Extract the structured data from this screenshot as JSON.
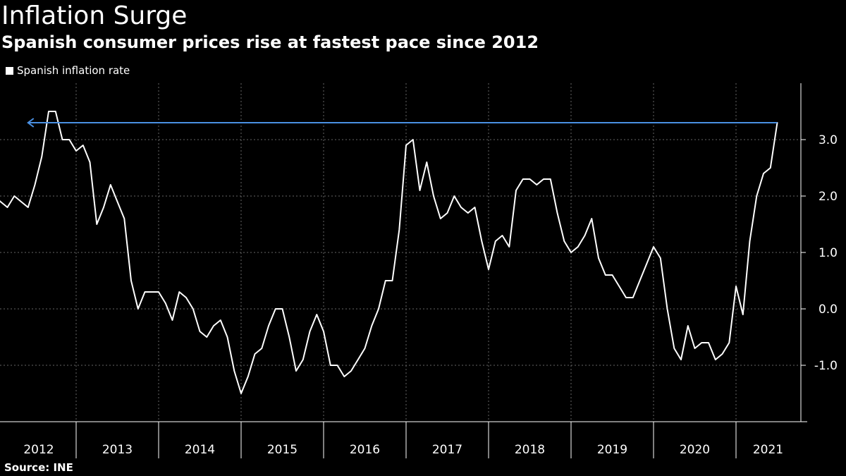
{
  "title": "Inflation Surge",
  "subtitle": "Spanish consumer prices rise at fastest pace since 2012",
  "source": "Source: INE",
  "colors": {
    "background": "#000000",
    "series": "#ffffff",
    "arrow": "#4a90e2",
    "grid": "#666666"
  },
  "chart_data": {
    "type": "line",
    "title": "Inflation Surge",
    "subtitle": "Spanish consumer prices rise at fastest pace since 2012",
    "legend": "top-left",
    "grid": true,
    "x_tick_labels": [
      "2012",
      "2013",
      "2014",
      "2015",
      "2016",
      "2017",
      "2018",
      "2019",
      "2020",
      "2021"
    ],
    "y_tick_labels": [
      "3.0",
      "2.0",
      "1.0",
      "0.0",
      "-1.0"
    ],
    "y_ticks": [
      3.0,
      2.0,
      1.0,
      0.0,
      -1.0
    ],
    "ylim": [
      -2.0,
      4.0
    ],
    "xlim": [
      "2012-01",
      "2021-08"
    ],
    "annotation": {
      "type": "arrow",
      "from": "2021-07",
      "to": "2012-06",
      "value": 3.3
    },
    "series": [
      {
        "name": "Spanish inflation rate",
        "x": [
          "2012-01",
          "2012-02",
          "2012-03",
          "2012-04",
          "2012-05",
          "2012-06",
          "2012-07",
          "2012-08",
          "2012-09",
          "2012-10",
          "2012-11",
          "2012-12",
          "2013-01",
          "2013-02",
          "2013-03",
          "2013-04",
          "2013-05",
          "2013-06",
          "2013-07",
          "2013-08",
          "2013-09",
          "2013-10",
          "2013-11",
          "2013-12",
          "2014-01",
          "2014-02",
          "2014-03",
          "2014-04",
          "2014-05",
          "2014-06",
          "2014-07",
          "2014-08",
          "2014-09",
          "2014-10",
          "2014-11",
          "2014-12",
          "2015-01",
          "2015-02",
          "2015-03",
          "2015-04",
          "2015-05",
          "2015-06",
          "2015-07",
          "2015-08",
          "2015-09",
          "2015-10",
          "2015-11",
          "2015-12",
          "2016-01",
          "2016-02",
          "2016-03",
          "2016-04",
          "2016-05",
          "2016-06",
          "2016-07",
          "2016-08",
          "2016-09",
          "2016-10",
          "2016-11",
          "2016-12",
          "2017-01",
          "2017-02",
          "2017-03",
          "2017-04",
          "2017-05",
          "2017-06",
          "2017-07",
          "2017-08",
          "2017-09",
          "2017-10",
          "2017-11",
          "2017-12",
          "2018-01",
          "2018-02",
          "2018-03",
          "2018-04",
          "2018-05",
          "2018-06",
          "2018-07",
          "2018-08",
          "2018-09",
          "2018-10",
          "2018-11",
          "2018-12",
          "2019-01",
          "2019-02",
          "2019-03",
          "2019-04",
          "2019-05",
          "2019-06",
          "2019-07",
          "2019-08",
          "2019-09",
          "2019-10",
          "2019-11",
          "2019-12",
          "2020-01",
          "2020-02",
          "2020-03",
          "2020-04",
          "2020-05",
          "2020-06",
          "2020-07",
          "2020-08",
          "2020-09",
          "2020-10",
          "2020-11",
          "2020-12",
          "2021-01",
          "2021-02",
          "2021-03",
          "2021-04",
          "2021-05",
          "2021-06",
          "2021-07"
        ],
        "values": [
          2.0,
          1.9,
          1.8,
          2.0,
          1.9,
          1.8,
          2.2,
          2.7,
          3.5,
          3.5,
          3.0,
          3.0,
          2.8,
          2.9,
          2.6,
          1.5,
          1.8,
          2.2,
          1.9,
          1.6,
          0.5,
          0.0,
          0.3,
          0.3,
          0.3,
          0.1,
          -0.2,
          0.3,
          0.2,
          0.0,
          -0.4,
          -0.5,
          -0.3,
          -0.2,
          -0.5,
          -1.1,
          -1.5,
          -1.2,
          -0.8,
          -0.7,
          -0.3,
          0.0,
          0.0,
          -0.5,
          -1.1,
          -0.9,
          -0.4,
          -0.1,
          -0.4,
          -1.0,
          -1.0,
          -1.2,
          -1.1,
          -0.9,
          -0.7,
          -0.3,
          0.0,
          0.5,
          0.5,
          1.4,
          2.9,
          3.0,
          2.1,
          2.6,
          2.0,
          1.6,
          1.7,
          2.0,
          1.8,
          1.7,
          1.8,
          1.2,
          0.7,
          1.2,
          1.3,
          1.1,
          2.1,
          2.3,
          2.3,
          2.2,
          2.3,
          2.3,
          1.7,
          1.2,
          1.0,
          1.1,
          1.3,
          1.6,
          0.9,
          0.6,
          0.6,
          0.4,
          0.2,
          0.2,
          0.5,
          0.8,
          1.1,
          0.9,
          0.0,
          -0.7,
          -0.9,
          -0.3,
          -0.7,
          -0.6,
          -0.6,
          -0.9,
          -0.8,
          -0.6,
          0.4,
          -0.1,
          1.2,
          2.0,
          2.4,
          2.5,
          3.3
        ]
      }
    ]
  }
}
